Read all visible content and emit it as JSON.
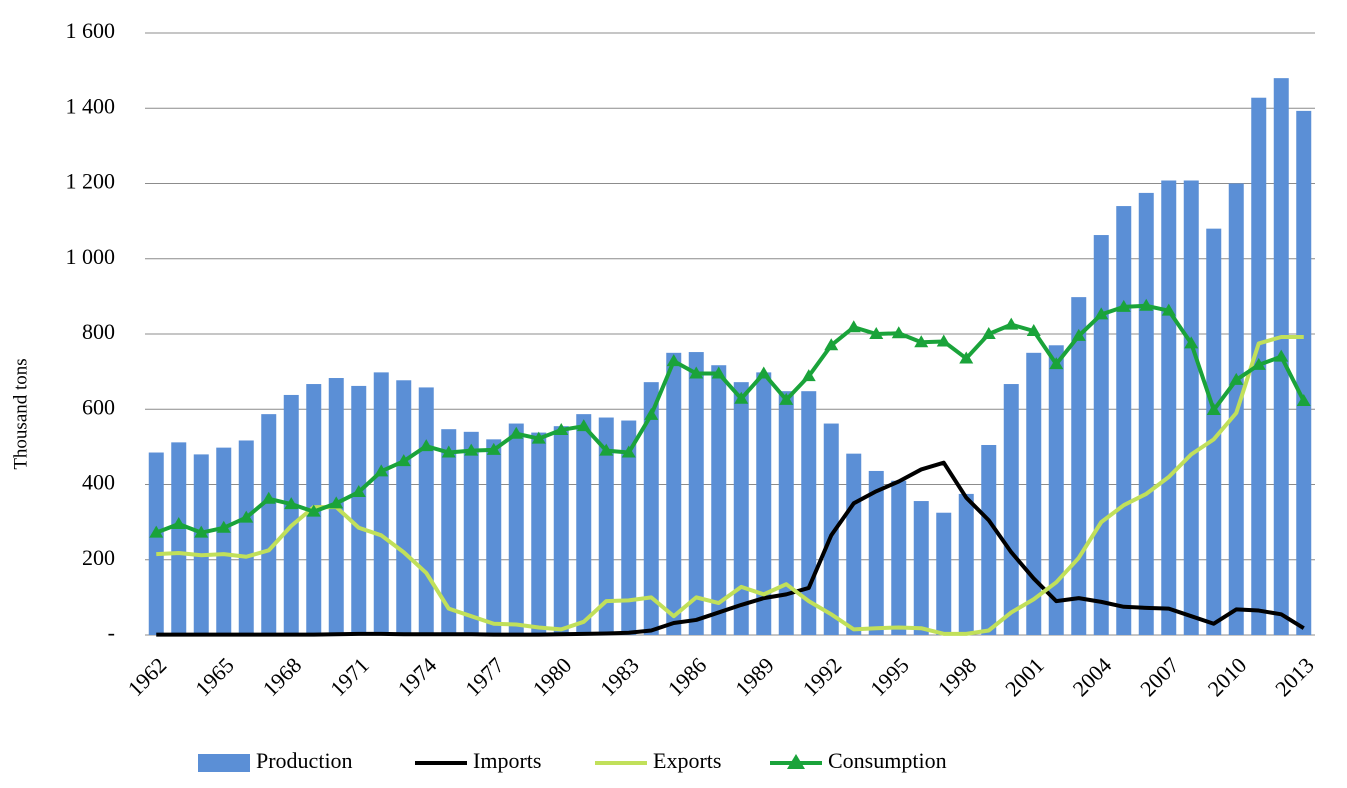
{
  "chart_data": {
    "type": "bar",
    "y_label": "Thousand tons",
    "categories": [
      "1962",
      null,
      null,
      "1965",
      null,
      null,
      "1968",
      null,
      null,
      "1971",
      null,
      null,
      "1974",
      null,
      null,
      "1977",
      null,
      null,
      "1980",
      null,
      null,
      "1983",
      null,
      null,
      "1986",
      null,
      null,
      "1989",
      null,
      null,
      "1992",
      null,
      null,
      "1995",
      null,
      null,
      "1998",
      null,
      null,
      "2001",
      null,
      null,
      "2004",
      null,
      null,
      "2007",
      null,
      null,
      "2010",
      null,
      null,
      "2013"
    ],
    "series": [
      {
        "name": "Production",
        "type": "bar",
        "color": "#5b8fd6",
        "values": [
          485,
          512,
          480,
          498,
          517,
          587,
          638,
          667,
          683,
          662,
          698,
          677,
          658,
          547,
          540,
          520,
          562,
          538,
          555,
          587,
          578,
          570,
          672,
          750,
          752,
          717,
          672,
          698,
          648,
          648,
          562,
          482,
          436,
          410,
          356,
          325,
          375,
          505,
          667,
          750,
          770,
          898,
          1063,
          1140,
          1175,
          1208,
          1208,
          1080,
          1200,
          1428,
          1480,
          1393
        ]
      },
      {
        "name": "Imports",
        "type": "line",
        "color": "#000000",
        "values": [
          1,
          1,
          1,
          1,
          1,
          1,
          1,
          1,
          2,
          3,
          3,
          2,
          2,
          2,
          2,
          1,
          1,
          1,
          2,
          3,
          4,
          6,
          12,
          32,
          40,
          60,
          80,
          98,
          108,
          125,
          265,
          350,
          382,
          408,
          440,
          458,
          365,
          305,
          220,
          150,
          90,
          98,
          88,
          75,
          72,
          70,
          50,
          30,
          68,
          65,
          55,
          18
        ]
      },
      {
        "name": "Exports",
        "type": "line",
        "color": "#c1e05a",
        "values": [
          215,
          218,
          212,
          215,
          208,
          225,
          290,
          340,
          340,
          285,
          265,
          220,
          165,
          70,
          50,
          30,
          28,
          20,
          15,
          35,
          90,
          92,
          100,
          50,
          100,
          85,
          128,
          108,
          135,
          90,
          55,
          15,
          18,
          20,
          18,
          3,
          3,
          12,
          60,
          95,
          140,
          205,
          300,
          345,
          375,
          420,
          480,
          520,
          590,
          775,
          792,
          792
        ]
      },
      {
        "name": "Consumption",
        "type": "line",
        "marker": "triangle",
        "color": "#1aa33a",
        "values": [
          272,
          295,
          272,
          285,
          312,
          362,
          348,
          328,
          350,
          380,
          435,
          462,
          502,
          485,
          490,
          492,
          535,
          522,
          545,
          555,
          490,
          485,
          585,
          728,
          695,
          695,
          628,
          695,
          625,
          688,
          770,
          818,
          800,
          802,
          778,
          780,
          735,
          800,
          825,
          808,
          720,
          795,
          852,
          872,
          875,
          862,
          775,
          598,
          678,
          718,
          740,
          622
        ]
      }
    ],
    "ylim": [
      0,
      1600
    ],
    "yticks": [
      {
        "value": 0,
        "label": "-"
      },
      200,
      400,
      600,
      800,
      {
        "value": 1000,
        "label": "1 000"
      },
      {
        "value": 1200,
        "label": "1 200"
      },
      {
        "value": 1400,
        "label": "1 400"
      },
      {
        "value": 1600,
        "label": "1 600"
      }
    ],
    "grid": true,
    "legend": "bottom"
  }
}
